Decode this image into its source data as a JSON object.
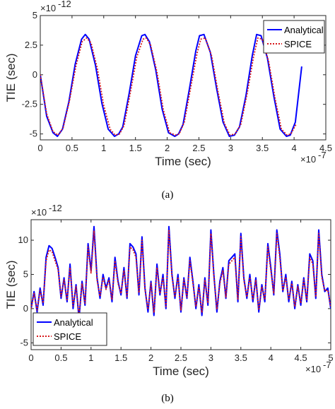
{
  "colors": {
    "analytical": "#0000ff",
    "spice": "#d7191c",
    "axis": "#262626"
  },
  "chart_data": [
    {
      "caption": "(a)",
      "type": "line",
      "xlabel": "Time (sec)",
      "ylabel": "TIE (sec)",
      "x_exponent": "×10",
      "x_exponent_power": "-7",
      "y_exponent": "×10",
      "y_exponent_power": "-12",
      "xlim": [
        0,
        4.5
      ],
      "ylim": [
        -5.5,
        5
      ],
      "xticks": [
        0,
        0.5,
        1,
        1.5,
        2,
        2.5,
        3,
        3.5,
        4,
        4.5
      ],
      "xtick_labels": [
        "0",
        "0.5",
        "1",
        "1.5",
        "2",
        "2.5",
        "3",
        "3.5",
        "4",
        "4.5"
      ],
      "yticks": [
        -5,
        -2.5,
        0,
        2.5,
        5
      ],
      "ytick_labels": [
        "-5",
        "-2.5",
        "0",
        "2.5",
        "5"
      ],
      "grid": false,
      "legend": "top-right",
      "series": [
        {
          "name": "Analytical",
          "style": "solid",
          "x": [
            0,
            0.1,
            0.2,
            0.27,
            0.35,
            0.45,
            0.55,
            0.65,
            0.71,
            0.77,
            0.87,
            0.97,
            1.07,
            1.17,
            1.235,
            1.3,
            1.4,
            1.5,
            1.6,
            1.65,
            1.72,
            1.82,
            1.92,
            2.02,
            2.12,
            2.18,
            2.25,
            2.35,
            2.45,
            2.51,
            2.58,
            2.68,
            2.78,
            2.88,
            2.98,
            3.06,
            3.14,
            3.24,
            3.34,
            3.41,
            3.48,
            3.58,
            3.68,
            3.78,
            3.88,
            3.94,
            4.02,
            4.12
          ],
          "y": [
            0,
            -3.5,
            -4.9,
            -5.2,
            -4.6,
            -2.3,
            0.9,
            3.0,
            3.4,
            3.0,
            0.8,
            -2.4,
            -4.6,
            -5.2,
            -5.0,
            -4.4,
            -1.6,
            1.6,
            3.3,
            3.4,
            2.8,
            0.4,
            -2.9,
            -4.9,
            -5.2,
            -5.0,
            -4.2,
            -1.2,
            2.0,
            3.3,
            3.4,
            1.9,
            -1.2,
            -4.0,
            -5.2,
            -5.1,
            -4.4,
            -1.8,
            1.6,
            3.4,
            3.3,
            1.4,
            -1.8,
            -4.6,
            -5.2,
            -5.1,
            -4.0,
            0.7
          ]
        },
        {
          "name": "SPICE",
          "style": "dotted",
          "x": [
            0,
            0.1,
            0.2,
            0.28,
            0.36,
            0.46,
            0.56,
            0.66,
            0.73,
            0.8,
            0.9,
            1.0,
            1.1,
            1.18,
            1.25,
            1.32,
            1.42,
            1.52,
            1.62,
            1.67,
            1.74,
            1.84,
            1.94,
            2.04,
            2.13,
            2.19,
            2.27,
            2.37,
            2.47,
            2.53,
            2.6,
            2.7,
            2.8,
            2.9,
            2.99,
            3.07,
            3.16,
            3.26,
            3.36,
            3.43,
            3.5,
            3.6,
            3.7,
            3.8,
            3.89,
            3.95,
            4.03
          ],
          "y": [
            0,
            -3.3,
            -4.8,
            -5.1,
            -4.5,
            -2.2,
            0.7,
            2.8,
            3.1,
            2.7,
            0.5,
            -2.6,
            -4.6,
            -5.1,
            -5.0,
            -4.3,
            -1.5,
            1.5,
            3.0,
            3.1,
            2.5,
            0.2,
            -3.0,
            -4.9,
            -5.1,
            -5.0,
            -4.0,
            -1.1,
            1.8,
            3.0,
            3.1,
            1.6,
            -1.4,
            -4.1,
            -5.1,
            -5.0,
            -4.2,
            -1.6,
            1.5,
            3.1,
            3.0,
            1.1,
            -2.0,
            -4.6,
            -5.1,
            -5.0,
            -4.2
          ]
        }
      ]
    },
    {
      "caption": "(b)",
      "type": "line",
      "xlabel": "Time (sec)",
      "ylabel": "TIE (sec)",
      "x_exponent": "×10",
      "x_exponent_power": "-7",
      "y_exponent": "×10",
      "y_exponent_power": "-12",
      "xlim": [
        0,
        5
      ],
      "ylim": [
        -6,
        13
      ],
      "xticks": [
        0,
        0.5,
        1,
        1.5,
        2,
        2.5,
        3,
        3.5,
        4,
        4.5,
        5
      ],
      "xtick_labels": [
        "0",
        "0.5",
        "1",
        "1.5",
        "2",
        "2.5",
        "3",
        "3.5",
        "4",
        "4.5",
        "5"
      ],
      "yticks": [
        -5,
        0,
        5,
        10
      ],
      "ytick_labels": [
        "-5",
        "0",
        "5",
        "10"
      ],
      "grid": false,
      "legend": "bottom-left",
      "series": [
        {
          "name": "Analytical",
          "style": "solid",
          "x": [
            0,
            0.05,
            0.1,
            0.15,
            0.2,
            0.25,
            0.3,
            0.35,
            0.4,
            0.45,
            0.5,
            0.55,
            0.6,
            0.65,
            0.7,
            0.75,
            0.8,
            0.85,
            0.9,
            0.95,
            1.0,
            1.05,
            1.1,
            1.15,
            1.2,
            1.25,
            1.3,
            1.35,
            1.4,
            1.45,
            1.5,
            1.55,
            1.6,
            1.65,
            1.7,
            1.75,
            1.8,
            1.85,
            1.9,
            1.95,
            2.0,
            2.05,
            2.1,
            2.15,
            2.2,
            2.25,
            2.3,
            2.35,
            2.4,
            2.45,
            2.5,
            2.55,
            2.6,
            2.65,
            2.7,
            2.75,
            2.8,
            2.85,
            2.9,
            2.95,
            3.0,
            3.05,
            3.1,
            3.15,
            3.2,
            3.25,
            3.3,
            3.35,
            3.4,
            3.45,
            3.5,
            3.55,
            3.6,
            3.65,
            3.7,
            3.75,
            3.8,
            3.85,
            3.9,
            3.95,
            4.0,
            4.05,
            4.1,
            4.15,
            4.2,
            4.25,
            4.3,
            4.35,
            4.4,
            4.45,
            4.5,
            4.55,
            4.6,
            4.65,
            4.7,
            4.75,
            4.8,
            4.85,
            4.9,
            4.95,
            5.0
          ],
          "y": [
            0,
            2.5,
            -0.5,
            3,
            0.5,
            7.5,
            9.2,
            8.8,
            7.5,
            6,
            1.5,
            4.5,
            1,
            6.5,
            0,
            3.5,
            -1.5,
            4,
            0.5,
            9.5,
            5.5,
            12,
            4.5,
            1.5,
            5,
            3,
            4.5,
            1,
            7.5,
            4,
            2,
            6,
            1.5,
            9.5,
            9,
            8,
            2,
            10.5,
            3,
            -0.5,
            4,
            -1,
            6.5,
            2,
            5,
            0,
            12,
            5,
            1.5,
            5,
            -0.5,
            4.5,
            1.5,
            7.5,
            4,
            0,
            3.5,
            -1,
            4.5,
            0.5,
            11.5,
            5,
            -0.5,
            4,
            6,
            1.5,
            7,
            7.5,
            8,
            1,
            11,
            4.5,
            1.5,
            5,
            1,
            4.5,
            -0.5,
            3.5,
            1,
            9.5,
            6,
            2,
            11.5,
            8,
            2.5,
            5,
            1,
            4,
            0,
            3.5,
            0.5,
            4.5,
            1,
            8,
            7,
            1.5,
            11.5,
            5,
            2.5,
            3,
            0
          ]
        },
        {
          "name": "SPICE",
          "style": "dotted",
          "x": [
            0,
            0.05,
            0.1,
            0.15,
            0.2,
            0.25,
            0.3,
            0.35,
            0.4,
            0.45,
            0.5,
            0.55,
            0.6,
            0.65,
            0.7,
            0.75,
            0.8,
            0.85,
            0.9,
            0.95,
            1.0,
            1.05,
            1.1,
            1.15,
            1.2,
            1.25,
            1.3,
            1.35,
            1.4,
            1.45,
            1.5,
            1.55,
            1.6,
            1.65,
            1.7,
            1.75,
            1.8,
            1.85,
            1.9,
            1.95,
            2.0,
            2.05,
            2.1,
            2.15,
            2.2,
            2.25,
            2.3,
            2.35,
            2.4,
            2.45,
            2.5,
            2.55,
            2.6,
            2.65,
            2.7,
            2.75,
            2.8,
            2.85,
            2.9,
            2.95,
            3.0,
            3.05,
            3.1,
            3.15,
            3.2,
            3.25,
            3.3,
            3.35,
            3.4,
            3.45,
            3.5,
            3.55,
            3.6,
            3.65,
            3.7,
            3.75,
            3.8,
            3.85,
            3.9,
            3.95,
            4.0,
            4.05,
            4.1,
            4.15,
            4.2,
            4.25,
            4.3,
            4.35,
            4.4,
            4.45,
            4.5,
            4.55,
            4.6,
            4.65,
            4.7,
            4.75,
            4.8,
            4.85,
            4.9,
            4.95,
            5.0
          ],
          "y": [
            0,
            2.2,
            -0.2,
            2.6,
            0.8,
            7,
            8.6,
            8.3,
            7,
            5.7,
            1.8,
            4.2,
            1.3,
            6,
            0.4,
            3.2,
            -1,
            3.6,
            0.8,
            9,
            5.2,
            11.4,
            4.2,
            1.8,
            4.6,
            2.8,
            4.2,
            1.3,
            7,
            3.7,
            2.2,
            5.6,
            1.8,
            9,
            8.6,
            7.5,
            2.3,
            10,
            2.8,
            -0.1,
            3.7,
            -0.6,
            6,
            2.2,
            4.6,
            0.3,
            11.4,
            4.7,
            1.7,
            4.6,
            -0.2,
            4.2,
            1.7,
            7,
            3.7,
            0.3,
            3.2,
            -0.6,
            4.2,
            0.8,
            11,
            4.7,
            -0.1,
            3.7,
            5.6,
            1.7,
            6.5,
            7,
            7.5,
            1.3,
            10.5,
            4.2,
            1.7,
            4.6,
            1.3,
            4.2,
            -0.2,
            3.2,
            1.3,
            9,
            5.6,
            2.2,
            11,
            7.5,
            2.6,
            4.6,
            1.3,
            3.7,
            0.3,
            3.2,
            0.8,
            4.2,
            1.3,
            7.5,
            6.5,
            1.7,
            11,
            4.6,
            2.6,
            2.7,
            0.2
          ]
        }
      ]
    }
  ]
}
